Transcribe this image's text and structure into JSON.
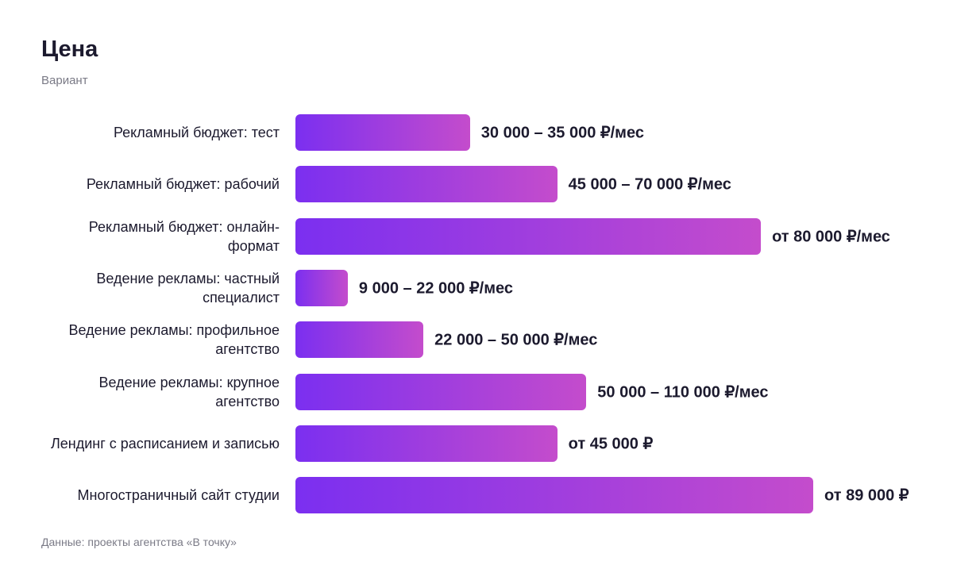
{
  "chart_data": {
    "type": "bar",
    "orientation": "horizontal",
    "title": "Цена",
    "subtitle": "Вариант",
    "categories": [
      "Рекламный бюджет: тест",
      "Рекламный бюджет: рабочий",
      "Рекламный бюджет: онлайн-формат",
      "Ведение рекламы: частный специалист",
      "Ведение рекламы: профильное агентство",
      "Ведение рекламы: крупное агентство",
      "Лендинг с расписанием и записью",
      "Многостраничный сайт студии"
    ],
    "values": [
      30000,
      45000,
      80000,
      9000,
      22000,
      50000,
      45000,
      89000
    ],
    "value_labels": [
      "30 000 – 35 000 ₽/мес",
      "45 000 – 70 000 ₽/мес",
      "от 80 000 ₽/мес",
      "9 000 – 22 000 ₽/мес",
      "22 000 – 50 000 ₽/мес",
      "50 000 – 110 000 ₽/мес",
      "от 45 000 ₽",
      "от 89 000 ₽"
    ],
    "color": [
      "#7b2ff0",
      "#c44ccc"
    ],
    "source": "Данные: проекты агентства «В точку»"
  }
}
